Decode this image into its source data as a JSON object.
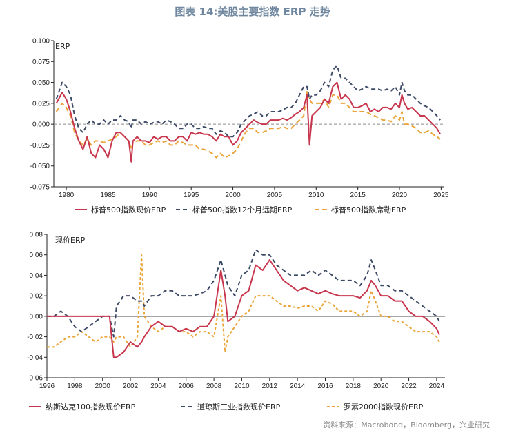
{
  "title": "图表 14:美股主要指数 ERP 走势",
  "source": "资料来源：Macrobond，Bloomberg，兴业研究",
  "colors": {
    "red": "#c8364d",
    "navy": "#3c4a66",
    "orange": "#eaa53a"
  },
  "chart_data": [
    {
      "type": "line",
      "ylabel": "ERP",
      "ylim": [
        -0.075,
        0.1
      ],
      "yticks": [
        "0.100",
        "0.075",
        "0.050",
        "0.025",
        "0.000",
        "-0.025",
        "-0.050",
        "-0.075"
      ],
      "xlim": [
        1978.5,
        2025.3
      ],
      "xticks": [
        "1980",
        "1985",
        "1990",
        "1995",
        "2000",
        "2005",
        "2010",
        "2015",
        "2020",
        "2025"
      ],
      "x": [
        1978.8,
        1979.5,
        1980.0,
        1980.5,
        1981.0,
        1981.5,
        1982.0,
        1982.5,
        1983.0,
        1983.5,
        1984.0,
        1984.5,
        1985.0,
        1985.5,
        1986.0,
        1986.5,
        1987.0,
        1987.5,
        1987.8,
        1988.0,
        1988.5,
        1989.0,
        1989.5,
        1990.0,
        1990.5,
        1991.0,
        1991.5,
        1992.0,
        1992.5,
        1993.0,
        1993.5,
        1994.0,
        1994.5,
        1995.0,
        1995.5,
        1996.0,
        1996.5,
        1997.0,
        1997.5,
        1998.0,
        1998.5,
        1999.0,
        1999.5,
        2000.0,
        2000.5,
        2001.0,
        2001.5,
        2002.0,
        2002.5,
        2003.0,
        2003.5,
        2004.0,
        2004.5,
        2005.0,
        2005.5,
        2006.0,
        2006.5,
        2007.0,
        2007.5,
        2008.0,
        2008.5,
        2008.9,
        2009.2,
        2009.5,
        2010.0,
        2010.5,
        2011.0,
        2011.5,
        2012.0,
        2012.5,
        2013.0,
        2013.5,
        2014.0,
        2014.5,
        2015.0,
        2015.5,
        2016.0,
        2016.5,
        2017.0,
        2017.5,
        2018.0,
        2018.5,
        2019.0,
        2019.5,
        2020.0,
        2020.3,
        2020.6,
        2021.0,
        2021.5,
        2022.0,
        2022.5,
        2023.0,
        2023.5,
        2024.0,
        2024.5,
        2024.9
      ],
      "series": [
        {
          "name": "标普500指数现价ERP",
          "color": "#c8364d",
          "dash": "solid",
          "values": [
            0.025,
            0.038,
            0.03,
            0.015,
            -0.005,
            -0.02,
            -0.03,
            -0.015,
            -0.035,
            -0.04,
            -0.025,
            -0.03,
            -0.04,
            -0.02,
            -0.01,
            -0.01,
            -0.015,
            -0.02,
            -0.045,
            -0.02,
            -0.015,
            -0.02,
            -0.02,
            -0.022,
            -0.015,
            -0.018,
            -0.015,
            -0.015,
            -0.02,
            -0.02,
            -0.015,
            -0.015,
            -0.02,
            -0.01,
            -0.012,
            -0.01,
            -0.012,
            -0.012,
            -0.015,
            -0.02,
            -0.012,
            -0.015,
            -0.015,
            -0.025,
            -0.02,
            -0.01,
            -0.005,
            0.0,
            0.005,
            0.002,
            0.0,
            0.0,
            0.005,
            0.005,
            0.005,
            0.007,
            0.005,
            0.008,
            0.012,
            0.015,
            0.02,
            0.035,
            -0.025,
            0.01,
            0.015,
            0.02,
            0.03,
            0.025,
            0.045,
            0.05,
            0.03,
            0.035,
            0.03,
            0.02,
            0.02,
            0.022,
            0.025,
            0.015,
            0.018,
            0.015,
            0.02,
            0.02,
            0.018,
            0.025,
            0.02,
            0.035,
            0.025,
            0.018,
            0.02,
            0.015,
            0.01,
            0.01,
            0.005,
            0.0,
            -0.005,
            -0.012
          ]
        },
        {
          "name": "标普500指数12个月远期ERP",
          "color": "#3c4a66",
          "dash": "6,4",
          "values": [
            0.03,
            0.05,
            0.045,
            0.035,
            0.01,
            -0.005,
            -0.01,
            0.0,
            0.005,
            0.0,
            0.0,
            0.005,
            0.0,
            0.005,
            0.005,
            0.01,
            0.005,
            0.003,
            -0.005,
            0.005,
            0.005,
            0.0,
            0.003,
            0.0,
            0.002,
            0.003,
            0.0,
            0.005,
            0.003,
            0.0,
            -0.005,
            -0.005,
            0.0,
            0.0,
            -0.005,
            -0.005,
            -0.003,
            -0.005,
            -0.005,
            -0.012,
            -0.008,
            -0.01,
            -0.015,
            -0.015,
            -0.01,
            0.0,
            0.005,
            0.01,
            0.012,
            0.015,
            0.01,
            0.01,
            0.015,
            0.015,
            0.015,
            0.017,
            0.02,
            0.02,
            0.025,
            0.035,
            0.045,
            0.045,
            0.03,
            0.035,
            0.035,
            0.04,
            0.05,
            0.045,
            0.065,
            0.07,
            0.055,
            0.055,
            0.05,
            0.045,
            0.04,
            0.042,
            0.045,
            0.042,
            0.042,
            0.042,
            0.04,
            0.042,
            0.04,
            0.045,
            0.035,
            0.05,
            0.04,
            0.035,
            0.035,
            0.03,
            0.025,
            0.022,
            0.02,
            0.015,
            0.01,
            0.005
          ]
        },
        {
          "name": "标普500指数席勒ERP",
          "color": "#eaa53a",
          "dash": "7,4",
          "values": [
            0.015,
            0.025,
            0.02,
            0.01,
            -0.01,
            -0.02,
            -0.025,
            -0.018,
            -0.025,
            -0.02,
            -0.02,
            -0.022,
            -0.02,
            -0.018,
            -0.015,
            -0.01,
            -0.015,
            -0.02,
            -0.03,
            -0.022,
            -0.02,
            -0.02,
            -0.025,
            -0.025,
            -0.022,
            -0.02,
            -0.022,
            -0.02,
            -0.025,
            -0.025,
            -0.02,
            -0.022,
            -0.025,
            -0.025,
            -0.025,
            -0.03,
            -0.03,
            -0.032,
            -0.035,
            -0.04,
            -0.035,
            -0.04,
            -0.038,
            -0.035,
            -0.03,
            -0.02,
            -0.01,
            -0.005,
            -0.005,
            -0.01,
            -0.01,
            -0.008,
            -0.005,
            -0.005,
            -0.005,
            -0.003,
            -0.005,
            -0.005,
            0.0,
            0.005,
            0.01,
            0.04,
            0.03,
            0.025,
            0.025,
            0.025,
            0.03,
            0.02,
            0.035,
            0.035,
            0.025,
            0.025,
            0.02,
            0.015,
            0.015,
            0.015,
            0.015,
            0.012,
            0.01,
            0.008,
            0.005,
            0.005,
            0.003,
            0.01,
            0.005,
            0.015,
            0.0,
            0.0,
            -0.002,
            -0.005,
            -0.01,
            -0.01,
            -0.008,
            -0.012,
            -0.015,
            -0.018
          ]
        }
      ]
    },
    {
      "type": "line",
      "ylabel": "现价ERP",
      "ylim": [
        -0.06,
        0.08
      ],
      "yticks": [
        "0.08",
        "0.06",
        "0.04",
        "0.02",
        "0.00",
        "-0.02",
        "-0.04",
        "-0.06"
      ],
      "xlim": [
        1996,
        2024.6
      ],
      "xticks": [
        "1996",
        "1998",
        "2000",
        "2002",
        "2004",
        "2006",
        "2008",
        "2010",
        "2012",
        "2014",
        "2016",
        "2018",
        "2020",
        "2022",
        "2024"
      ],
      "x": [
        1996.0,
        1996.5,
        1997.0,
        1997.5,
        1998.0,
        1998.5,
        1999.0,
        1999.5,
        2000.0,
        2000.5,
        2000.8,
        2001.0,
        2001.5,
        2002.0,
        2002.5,
        2002.8,
        2003.0,
        2003.5,
        2004.0,
        2004.5,
        2005.0,
        2005.5,
        2006.0,
        2006.5,
        2007.0,
        2007.5,
        2008.0,
        2008.5,
        2008.8,
        2009.0,
        2009.5,
        2010.0,
        2010.5,
        2011.0,
        2011.5,
        2012.0,
        2012.5,
        2013.0,
        2013.5,
        2014.0,
        2014.5,
        2015.0,
        2015.5,
        2016.0,
        2016.5,
        2017.0,
        2017.5,
        2018.0,
        2018.5,
        2019.0,
        2019.3,
        2019.6,
        2020.0,
        2020.5,
        2021.0,
        2021.5,
        2022.0,
        2022.5,
        2023.0,
        2023.5,
        2024.0,
        2024.2
      ],
      "series": [
        {
          "name": "纳斯达克100指数现价ERP",
          "color": "#c8364d",
          "dash": "solid",
          "values": [
            0.0,
            0.0,
            0.0,
            0.0,
            0.0,
            0.0,
            0.0,
            0.0,
            0.0,
            0.0,
            -0.04,
            -0.04,
            -0.035,
            -0.025,
            -0.03,
            -0.025,
            -0.02,
            -0.01,
            -0.005,
            -0.01,
            -0.01,
            -0.015,
            -0.012,
            -0.015,
            -0.01,
            -0.01,
            0.0,
            0.045,
            0.02,
            -0.005,
            0.0,
            0.02,
            0.025,
            0.05,
            0.045,
            0.055,
            0.045,
            0.035,
            0.03,
            0.025,
            0.028,
            0.025,
            0.022,
            0.025,
            0.022,
            0.02,
            0.02,
            0.02,
            0.018,
            0.025,
            0.035,
            0.03,
            0.02,
            0.02,
            0.015,
            0.015,
            0.005,
            0.0,
            0.0,
            -0.005,
            -0.012,
            -0.018
          ]
        },
        {
          "name": "道琼斯工业指数现价ERP",
          "color": "#3c4a66",
          "dash": "6,4",
          "values": [
            0.0,
            0.0,
            0.005,
            0.0,
            -0.01,
            -0.015,
            -0.01,
            -0.005,
            0.0,
            0.0,
            -0.02,
            0.01,
            0.02,
            0.02,
            0.015,
            0.015,
            0.01,
            0.02,
            0.02,
            0.025,
            0.025,
            0.02,
            0.02,
            0.02,
            0.022,
            0.025,
            0.035,
            0.055,
            0.04,
            0.03,
            0.02,
            0.04,
            0.045,
            0.065,
            0.06,
            0.06,
            0.05,
            0.045,
            0.04,
            0.04,
            0.04,
            0.045,
            0.04,
            0.045,
            0.04,
            0.035,
            0.035,
            0.035,
            0.03,
            0.04,
            0.055,
            0.045,
            0.03,
            0.03,
            0.025,
            0.025,
            0.02,
            0.015,
            0.01,
            0.005,
            0.0,
            -0.005
          ]
        },
        {
          "name": "罗素2000指数现价ERP",
          "color": "#eaa53a",
          "dash": "4,3",
          "values": [
            -0.03,
            -0.03,
            -0.025,
            -0.02,
            -0.02,
            -0.015,
            -0.02,
            -0.025,
            -0.02,
            -0.02,
            -0.025,
            -0.02,
            -0.02,
            -0.03,
            -0.02,
            0.06,
            0.0,
            -0.01,
            -0.015,
            -0.01,
            -0.01,
            -0.015,
            -0.015,
            -0.02,
            -0.015,
            -0.015,
            -0.02,
            0.02,
            -0.035,
            -0.02,
            -0.01,
            0.0,
            0.005,
            0.02,
            0.02,
            0.02,
            0.015,
            0.01,
            0.01,
            0.008,
            0.01,
            0.01,
            0.005,
            0.015,
            0.012,
            0.005,
            0.005,
            0.005,
            0.0,
            0.005,
            0.025,
            0.015,
            0.0,
            0.0,
            -0.005,
            -0.005,
            -0.01,
            -0.015,
            -0.015,
            -0.015,
            -0.02,
            -0.025
          ]
        }
      ]
    }
  ]
}
